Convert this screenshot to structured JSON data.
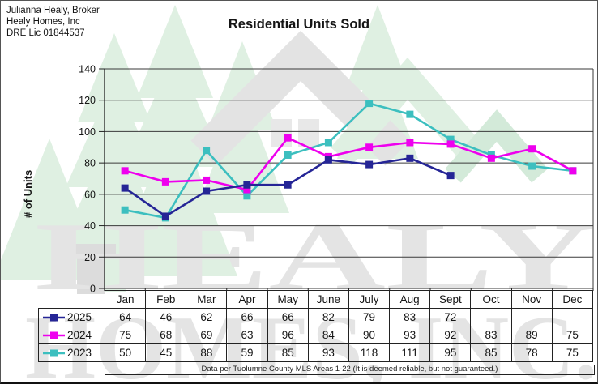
{
  "header": {
    "lines": [
      "Julianna Healy, Broker",
      "Healy Homes, Inc",
      "DRE Lic 01844537"
    ]
  },
  "title": "Residential Units Sold",
  "ylabel": "# of Units",
  "footnote": "Data per Tuolumne County MLS Areas 1-22 (It is deemed reliable, but not guaranteed.)",
  "watermark": {
    "line1": "HEALY",
    "line2": "HOMES, INC."
  },
  "colors": {
    "grid": "#3a3a3a",
    "axis": "#222222",
    "watermark_gray": "#e4e4e4",
    "watermark_green": "#dff0e2",
    "watermark_green_dark": "#d3ead9"
  },
  "chart_data": {
    "type": "line",
    "title": "Residential Units Sold",
    "xlabel": "",
    "ylabel": "# of Units",
    "categories": [
      "Jan",
      "Feb",
      "Mar",
      "Apr",
      "May",
      "June",
      "July",
      "Aug",
      "Sept",
      "Oct",
      "Nov",
      "Dec"
    ],
    "ylim": [
      0,
      140
    ],
    "ytick_step": 20,
    "grid": true,
    "marker": "square",
    "legend_position": "table-left-column",
    "series": [
      {
        "name": "2025",
        "color": "#252596",
        "values": [
          64,
          46,
          62,
          66,
          66,
          82,
          79,
          83,
          72,
          null,
          null,
          null
        ]
      },
      {
        "name": "2024",
        "color": "#EE00EE",
        "values": [
          75,
          68,
          69,
          63,
          96,
          84,
          90,
          93,
          92,
          83,
          89,
          75
        ]
      },
      {
        "name": "2023",
        "color": "#3CBFBF",
        "values": [
          50,
          45,
          88,
          59,
          85,
          93,
          118,
          111,
          95,
          85,
          78,
          75
        ]
      }
    ]
  }
}
